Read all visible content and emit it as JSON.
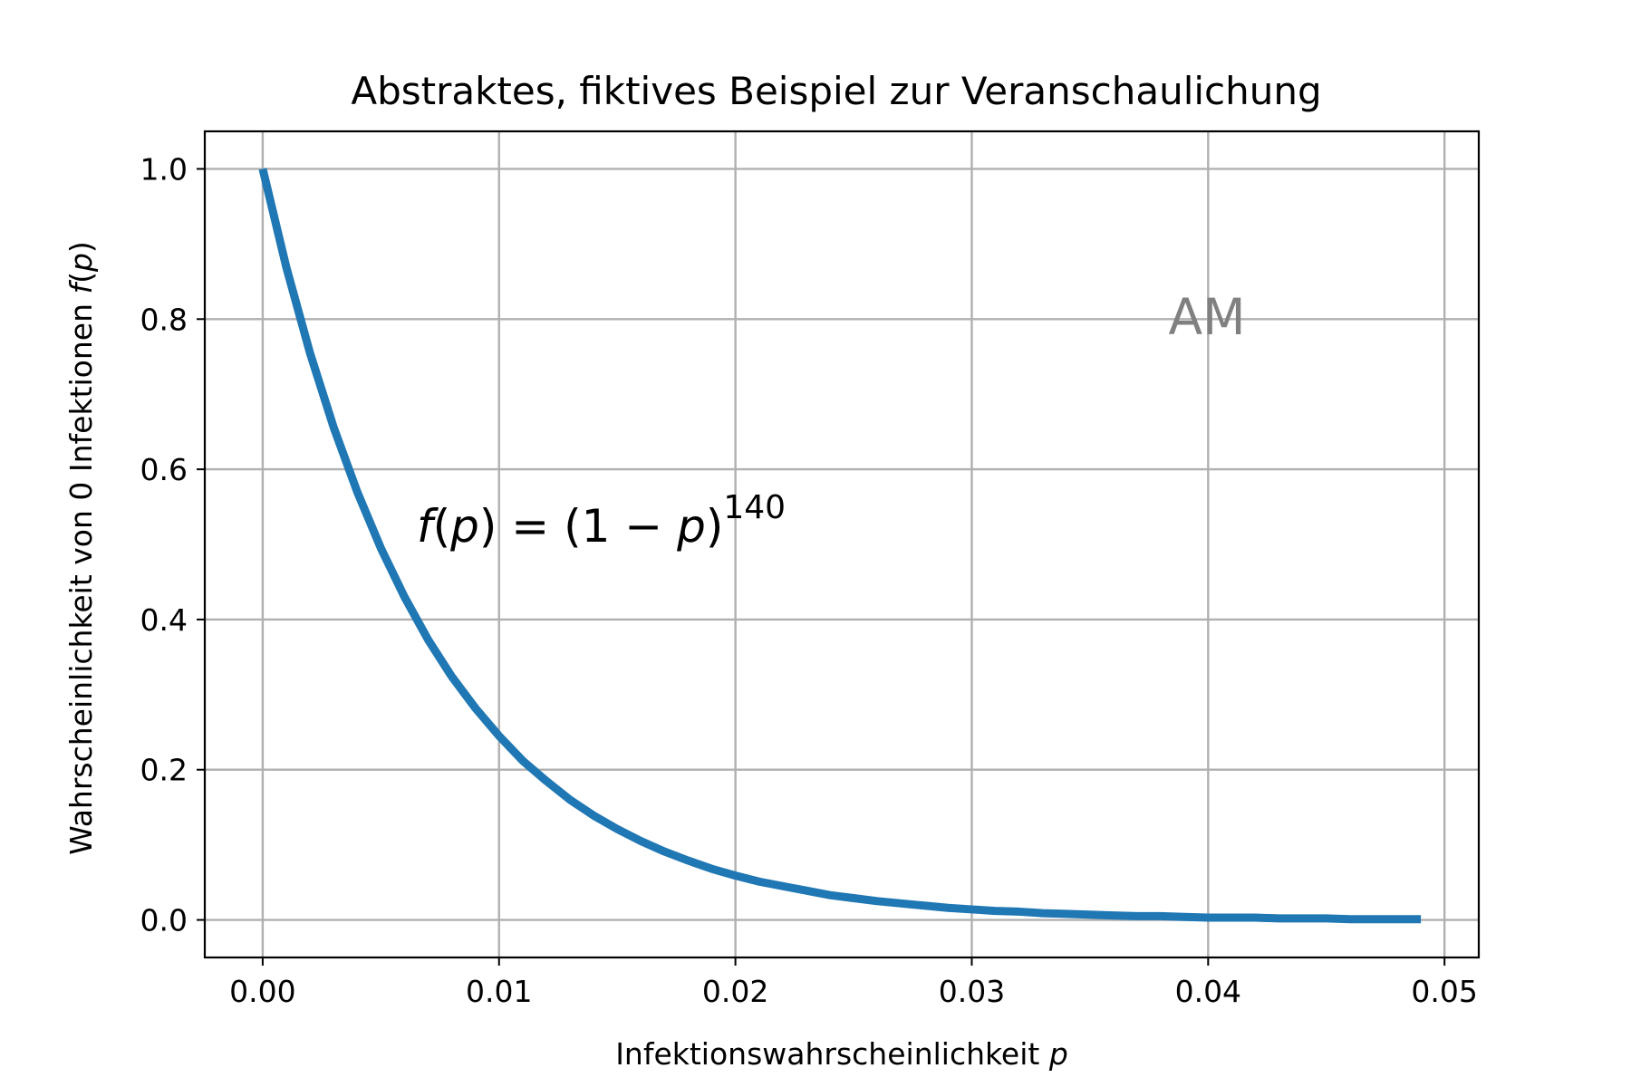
{
  "chart_data": {
    "type": "line",
    "title": "Abstraktes, fiktives Beispiel zur Veranschaulichung",
    "xlabel": {
      "text": "Infektionswahrscheinlichkeit ",
      "var": "p"
    },
    "ylabel": {
      "text": "Wahrscheinlichkeit von 0 Infektionen ",
      "func": "f",
      "open": "(",
      "var": "p",
      "close": ")"
    },
    "xlim": [
      -0.00245,
      0.05145
    ],
    "ylim": [
      -0.05,
      1.05
    ],
    "xticks": [
      "0.00",
      "0.01",
      "0.02",
      "0.03",
      "0.04",
      "0.05"
    ],
    "yticks": [
      "0.0",
      "0.2",
      "0.4",
      "0.6",
      "0.8",
      "1.0"
    ],
    "grid": true,
    "series": [
      {
        "function": "(1-p)^140",
        "color": "#1f77b4",
        "x": [
          0.0,
          0.001,
          0.002,
          0.003,
          0.004,
          0.005,
          0.006,
          0.007,
          0.008,
          0.009,
          0.01,
          0.011,
          0.012,
          0.013,
          0.014,
          0.015,
          0.016,
          0.017,
          0.018,
          0.019,
          0.02,
          0.021,
          0.022,
          0.023,
          0.024,
          0.025,
          0.026,
          0.027,
          0.028,
          0.029,
          0.03,
          0.031,
          0.032,
          0.033,
          0.034,
          0.035,
          0.036,
          0.037,
          0.038,
          0.039,
          0.04,
          0.041,
          0.042,
          0.043,
          0.044,
          0.045,
          0.046,
          0.047,
          0.048,
          0.049
        ],
        "y": [
          1.0,
          0.869,
          0.755,
          0.656,
          0.57,
          0.495,
          0.43,
          0.373,
          0.324,
          0.282,
          0.245,
          0.212,
          0.185,
          0.16,
          0.139,
          0.121,
          0.105,
          0.091,
          0.079,
          0.068,
          0.059,
          0.051,
          0.045,
          0.039,
          0.033,
          0.029,
          0.025,
          0.022,
          0.019,
          0.016,
          0.014,
          0.012,
          0.011,
          0.009,
          0.008,
          0.007,
          0.006,
          0.005,
          0.005,
          0.004,
          0.003,
          0.003,
          0.003,
          0.002,
          0.002,
          0.002,
          0.001,
          0.001,
          0.001,
          0.001
        ]
      }
    ],
    "annotation": {
      "func": "f",
      "open": "(",
      "var": "p",
      "mid": ") = (1 − ",
      "var2": "p",
      "close": ")",
      "exponent": "140"
    },
    "watermark": {
      "text": "AM",
      "color": "#808080"
    }
  }
}
